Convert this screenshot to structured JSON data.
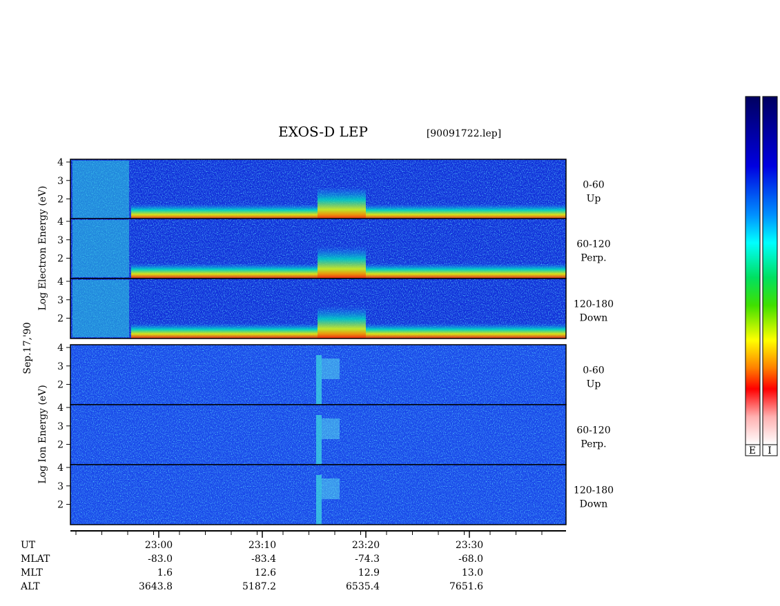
{
  "header": {
    "title": "EXOS-D LEP",
    "file": "[90091722.lep]"
  },
  "y_axis": {
    "ylim": [
      0.9,
      4.15
    ],
    "yticks": [
      2,
      3,
      4
    ],
    "electron_label": "Log Electron Energy (eV)",
    "ion_label": "Log Ion Energy (eV)",
    "date": "Sep.17,'90"
  },
  "panels": [
    {
      "range": "0-60",
      "direction": "Up"
    },
    {
      "range": "60-120",
      "direction": "Perp."
    },
    {
      "range": "120-180",
      "direction": "Down"
    },
    {
      "range": "0-60",
      "direction": "Up"
    },
    {
      "range": "60-120",
      "direction": "Perp."
    },
    {
      "range": "120-180",
      "direction": "Down"
    }
  ],
  "ephemeris": {
    "labels": [
      "UT",
      "MLAT",
      "MLT",
      "ALT"
    ],
    "columns": [
      [
        "23:00",
        "-83.0",
        "1.6",
        "3643.8"
      ],
      [
        "23:10",
        "-83.4",
        "12.6",
        "5187.2"
      ],
      [
        "23:20",
        "-74.3",
        "12.9",
        "6535.4"
      ],
      [
        "23:30",
        "-68.0",
        "13.0",
        "7651.6"
      ]
    ]
  },
  "colorbars": {
    "labels": [
      "E",
      "I"
    ]
  }
}
